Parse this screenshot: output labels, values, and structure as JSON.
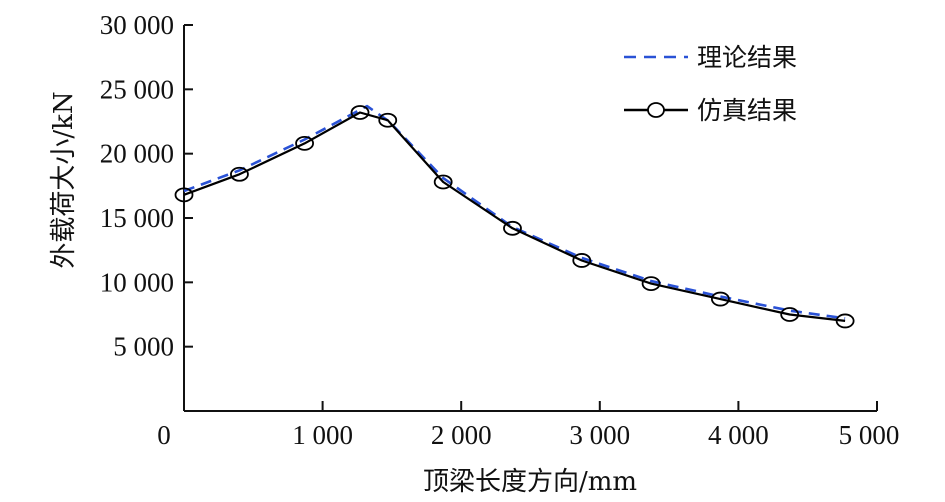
{
  "chart_data": {
    "type": "line",
    "title": "",
    "xlabel": "顶梁长度方向/mm",
    "ylabel": "外载荷大小/kN",
    "xlim": [
      0,
      5000
    ],
    "ylim": [
      0,
      30000
    ],
    "x_ticks": [
      0,
      1000,
      2000,
      3000,
      4000,
      5000
    ],
    "x_tick_labels": [
      "0",
      "1 000",
      "2 000",
      "3 000",
      "4 000",
      "5 000"
    ],
    "y_ticks": [
      5000,
      10000,
      15000,
      20000,
      25000,
      30000
    ],
    "y_tick_labels": [
      "5 000",
      "10 000",
      "15 000",
      "20 000",
      "25 000",
      "30 000"
    ],
    "grid": false,
    "legend_position": "upper right",
    "series": [
      {
        "name": "理论结果",
        "style": "dashed",
        "color": "#2a52d6",
        "x": [
          0,
          400,
          870,
          1320,
          1480,
          1870,
          2370,
          2870,
          3370,
          3870,
          4370,
          4770
        ],
        "y": [
          17100,
          18700,
          21100,
          23700,
          22500,
          18100,
          14300,
          11900,
          10100,
          8900,
          7800,
          7200
        ]
      },
      {
        "name": "仿真结果",
        "style": "solid-circle-markers",
        "color": "#000000",
        "x": [
          0,
          400,
          870,
          1270,
          1470,
          1870,
          2370,
          2870,
          3370,
          3870,
          4370,
          4770
        ],
        "y": [
          16800,
          18400,
          20800,
          23200,
          22600,
          17800,
          14200,
          11700,
          9900,
          8700,
          7500,
          7000
        ]
      }
    ]
  }
}
